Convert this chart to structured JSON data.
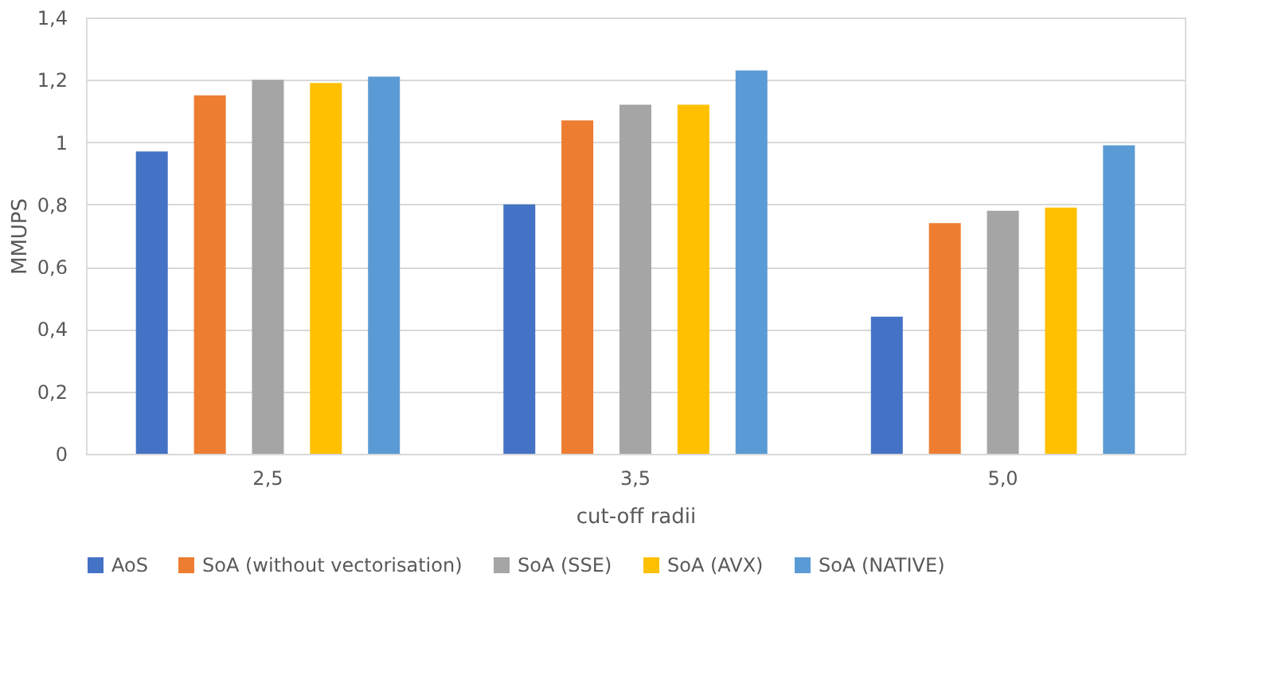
{
  "chart_data": {
    "type": "bar",
    "xlabel": "cut-off radii",
    "ylabel": "MMUPS",
    "categories": [
      "2,5",
      "3,5",
      "5,0"
    ],
    "series": [
      {
        "name": "AoS",
        "color": "#4472c4",
        "values": [
          0.97,
          0.8,
          0.44
        ]
      },
      {
        "name": "SoA (without vectorisation)",
        "color": "#ed7d31",
        "values": [
          1.15,
          1.07,
          0.74
        ]
      },
      {
        "name": "SoA (SSE)",
        "color": "#a5a5a5",
        "values": [
          1.2,
          1.12,
          0.78
        ]
      },
      {
        "name": "SoA (AVX)",
        "color": "#ffc000",
        "values": [
          1.19,
          1.12,
          0.79
        ]
      },
      {
        "name": "SoA (NATIVE)",
        "color": "#5b9bd5",
        "values": [
          1.21,
          1.23,
          0.99
        ]
      }
    ],
    "ylim": [
      0,
      1.4
    ],
    "yticks": [
      0,
      {
        "value": 0.2,
        "label": "0,2"
      },
      {
        "value": 0.4,
        "label": "0,4"
      },
      {
        "value": 0.6,
        "label": "0,6"
      },
      {
        "value": 0.8,
        "label": "0,8"
      },
      1,
      {
        "value": 1.2,
        "label": "1,2"
      },
      {
        "value": 1.4,
        "label": "1,4"
      }
    ],
    "grid": "y",
    "legend": "bottom"
  }
}
